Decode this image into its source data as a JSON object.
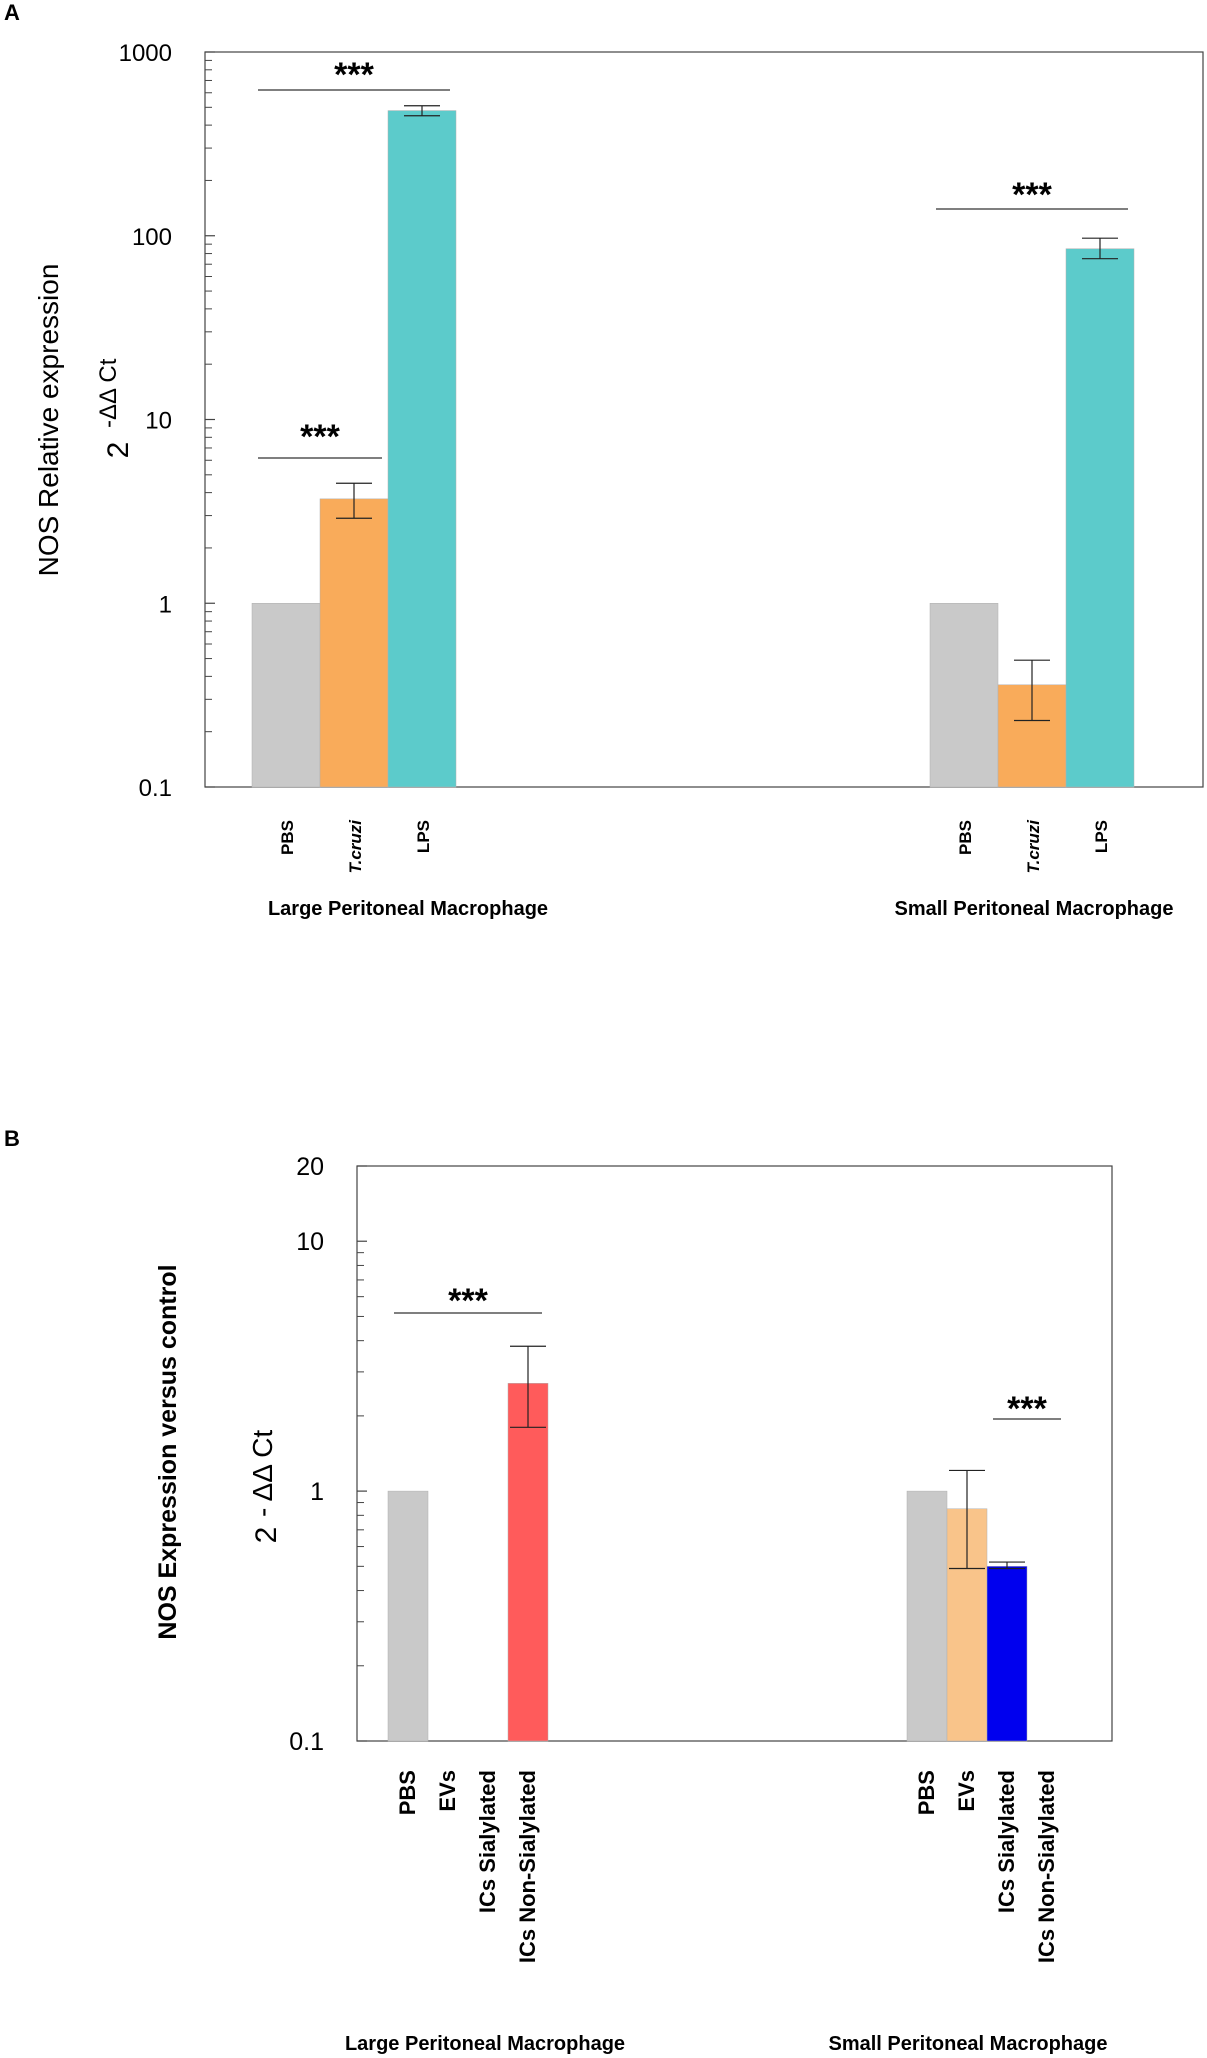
{
  "chart_data": [
    {
      "panel": "A",
      "type": "bar",
      "yscale": "log",
      "ylim": [
        0.1,
        1000
      ],
      "ylabel_line1": "NOS Relative expression",
      "ylabel_line2_base": "2",
      "ylabel_line2_exp": "-ΔΔ Ct",
      "yticks": [
        {
          "value": 1000,
          "label": "1000"
        },
        {
          "value": 100,
          "label": "100"
        },
        {
          "value": 10,
          "label": "10"
        },
        {
          "value": 1,
          "label": "1"
        },
        {
          "value": 0.1,
          "label": "0.1"
        }
      ],
      "groups": [
        {
          "name": "Large Peritoneal Macrophage",
          "bars": [
            {
              "label": "PBS",
              "italic": false,
              "value": 1,
              "err_low": null,
              "err_high": null,
              "color": "#c9c9c9"
            },
            {
              "label": "T.cruzi",
              "italic": true,
              "value": 3.7,
              "err_low": 2.9,
              "err_high": 4.5,
              "color": "#f9ab5a"
            },
            {
              "label": "LPS",
              "italic": false,
              "value": 480,
              "err_low": 450,
              "err_high": 510,
              "color": "#5ccbcb"
            }
          ],
          "significance": [
            {
              "text": "***",
              "from_bar": 0,
              "to_bar": 1
            },
            {
              "text": "***",
              "from_bar": 0,
              "to_bar": 2
            }
          ]
        },
        {
          "name": "Small Peritoneal Macrophage",
          "bars": [
            {
              "label": "PBS",
              "italic": false,
              "value": 1,
              "err_low": null,
              "err_high": null,
              "color": "#c9c9c9"
            },
            {
              "label": "T.cruzi",
              "italic": true,
              "value": 0.36,
              "err_low": 0.23,
              "err_high": 0.49,
              "color": "#f9ab5a"
            },
            {
              "label": "LPS",
              "italic": false,
              "value": 85,
              "err_low": 75,
              "err_high": 97,
              "color": "#5ccbcb"
            }
          ],
          "significance": [
            {
              "text": "***",
              "from_bar": 0,
              "to_bar": 2
            }
          ]
        }
      ]
    },
    {
      "panel": "B",
      "type": "bar",
      "yscale": "log",
      "ylim": [
        0.1,
        20
      ],
      "ylabel_line1": "NOS Expression versus control",
      "ylabel_line2_base": "2",
      "ylabel_line2_exp": "- ΔΔ Ct",
      "yticks": [
        {
          "value": 20,
          "label": "20"
        },
        {
          "value": 10,
          "label": "10"
        },
        {
          "value": 1,
          "label": "1"
        },
        {
          "value": 0.1,
          "label": "0.1"
        }
      ],
      "groups": [
        {
          "name": "Large Peritoneal Macrophage",
          "bars": [
            {
              "label": "PBS",
              "value": 1,
              "err_low": null,
              "err_high": null,
              "color": "#c9c9c9"
            },
            {
              "label": "EVs",
              "value": null,
              "err_low": null,
              "err_high": null,
              "color": "#f9c48a"
            },
            {
              "label": "ICs Sialylated",
              "value": null,
              "err_low": null,
              "err_high": null,
              "color": "#0000ee"
            },
            {
              "label": "ICs Non-Sialylated",
              "value": 2.7,
              "err_low": 1.8,
              "err_high": 3.8,
              "color": "#ff5b5b"
            }
          ],
          "significance": [
            {
              "text": "***",
              "from_bar": 0,
              "to_bar": 3
            }
          ]
        },
        {
          "name": "Small Peritoneal Macrophage",
          "bars": [
            {
              "label": "PBS",
              "value": 1,
              "err_low": null,
              "err_high": null,
              "color": "#c9c9c9"
            },
            {
              "label": "EVs",
              "value": 0.85,
              "err_low": 0.49,
              "err_high": 1.21,
              "color": "#f9c48a"
            },
            {
              "label": "ICs Sialylated",
              "value": 0.5,
              "err_low": 0.49,
              "err_high": 0.52,
              "color": "#0000ee"
            },
            {
              "label": "ICs Non-Sialylated",
              "value": null,
              "err_low": null,
              "err_high": null,
              "color": "#ff5b5b"
            }
          ],
          "significance": [
            {
              "text": "***",
              "from_bar": 2,
              "to_bar": 3
            }
          ]
        }
      ]
    }
  ]
}
